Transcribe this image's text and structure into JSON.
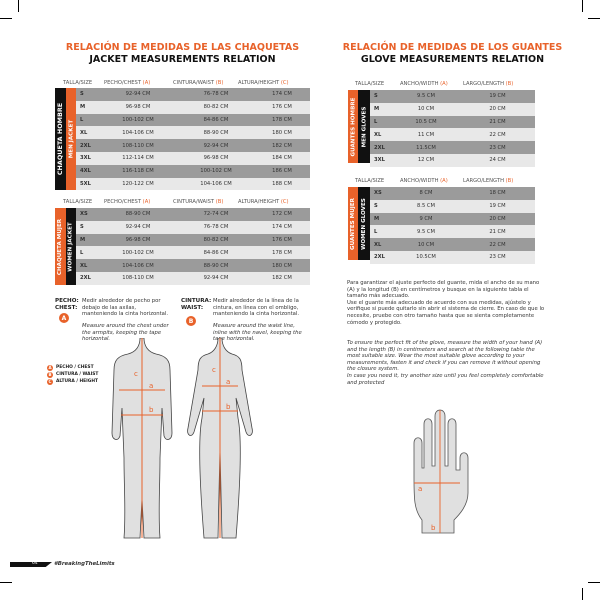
{
  "jacket": {
    "title_es": "RELACIÓN DE MEDIDAS DE LAS CHAQUETAS",
    "title_en": "JACKET MEASUREMENTS RELATION",
    "headers": {
      "size": "TALLA/SIZE",
      "chest": "PECHO/CHEST",
      "chest_tag": "(A)",
      "waist": "CINTURA/WAIST",
      "waist_tag": "(B)",
      "height": "ALTURA/HEIGHT",
      "height_tag": "(C)"
    },
    "men": {
      "label_es": "CHAQUETA HOMBRE",
      "label_en": "MEN JACKET",
      "rows": [
        [
          "S",
          "92-94 CM",
          "76-78 CM",
          "174 CM"
        ],
        [
          "M",
          "96-98 CM",
          "80-82 CM",
          "176 CM"
        ],
        [
          "L",
          "100-102 CM",
          "84-86 CM",
          "178 CM"
        ],
        [
          "XL",
          "104-106 CM",
          "88-90 CM",
          "180 CM"
        ],
        [
          "2XL",
          "108-110 CM",
          "92-94 CM",
          "182 CM"
        ],
        [
          "3XL",
          "112-114 CM",
          "96-98 CM",
          "184 CM"
        ],
        [
          "4XL",
          "116-118 CM",
          "100-102 CM",
          "186 CM"
        ],
        [
          "5XL",
          "120-122 CM",
          "104-106 CM",
          "188 CM"
        ]
      ]
    },
    "women": {
      "label_es": "CHAQUETA MUJER",
      "label_en": "WOMEN JACKET",
      "rows": [
        [
          "XS",
          "88-90 CM",
          "72-74 CM",
          "172 CM"
        ],
        [
          "S",
          "92-94 CM",
          "76-78 CM",
          "174 CM"
        ],
        [
          "M",
          "96-98 CM",
          "80-82 CM",
          "176 CM"
        ],
        [
          "L",
          "100-102 CM",
          "84-86 CM",
          "178 CM"
        ],
        [
          "XL",
          "104-106 CM",
          "88-90 CM",
          "180 CM"
        ],
        [
          "2XL",
          "108-110 CM",
          "92-94 CM",
          "182 CM"
        ]
      ]
    },
    "chest_note": {
      "label": "PECHO:\nCHEST:",
      "badge": "A",
      "es": "Medir alrededor de pecho por debajo de las axilas, manteniendo la cinta horizontal.",
      "en": "Measure around the chest under the armpits, keeping the tape horizontal."
    },
    "waist_note": {
      "label": "CINTURA:\nWAIST:",
      "badge": "B",
      "es": "Medir alrededor de la línea de la cintura, en línea con el ombligo, manteniendo la cinta horizontal.",
      "en": "Measure around the waist line, inline with the navel, keeping the tape horizontal."
    },
    "legend": [
      {
        "badge": "A",
        "label": "PECHO / CHEST"
      },
      {
        "badge": "B",
        "label": "CINTURA / WAIST"
      },
      {
        "badge": "C",
        "label": "ALTURA / HEIGHT"
      }
    ],
    "figure_labels": {
      "a": "a",
      "b": "b",
      "c": "c"
    }
  },
  "gloves": {
    "title_es": "RELACIÓN DE MEDIDAS DE LOS GUANTES",
    "title_en": "GLOVE MEASUREMENTS RELATION",
    "headers": {
      "size": "TALLA/SIZE",
      "width": "ANCHO/WIDTH",
      "width_tag": "(A)",
      "length": "LARGO/LENGTH",
      "length_tag": "(B)"
    },
    "men": {
      "label_es": "GUANTES HOMBRE",
      "label_en": "MEN GLOVES",
      "rows": [
        [
          "S",
          "9.5 CM",
          "19 CM"
        ],
        [
          "M",
          "10 CM",
          "20 CM"
        ],
        [
          "L",
          "10.5 CM",
          "21 CM"
        ],
        [
          "XL",
          "11 CM",
          "22 CM"
        ],
        [
          "2XL",
          "11.5CM",
          "23 CM"
        ],
        [
          "3XL",
          "12 CM",
          "24 CM"
        ]
      ]
    },
    "women": {
      "label_es": "GUANTES MUJER",
      "label_en": "WOMEN GLOVES",
      "rows": [
        [
          "XS",
          "8 CM",
          "18 CM"
        ],
        [
          "S",
          "8.5 CM",
          "19 CM"
        ],
        [
          "M",
          "9 CM",
          "20 CM"
        ],
        [
          "L",
          "9.5 CM",
          "21 CM"
        ],
        [
          "XL",
          "10 CM",
          "22 CM"
        ],
        [
          "2XL",
          "10.5CM",
          "23 CM"
        ]
      ]
    },
    "text_es_1": "Para garantizar el ajuste perfecto del guante, mida el ancho de su mano (A) y la longitud (B) en centímetros y busque en la siguiente tabla el tamaño más adecuado.",
    "text_es_2": "Use el guante más adecuado de acuerdo con sus medidas, ajústelo y verifique si puede quitarlo sin abrir el sistema de cierre. En caso de que lo necesite, pruebe con otro tamaño hasta que se sienta completamente cómodo y protegido.",
    "text_en_1": "To ensure the perfect fit of the glove, measure the width of your hand (A) and the length (B) in centimeters and search at the following table the most suitable size. Wear the most suitable glove according to your measurements, fasten it and check if you can remove it without opening the closure system.",
    "text_en_2": "In case you need it, try another size until you feel completely comfortable and protected",
    "hand_labels": {
      "a": "a",
      "b": "b"
    }
  },
  "footer": {
    "page": "64",
    "tag": "#BreakingTheLimits"
  },
  "colors": {
    "accent": "#e8622a",
    "dark": "#111111",
    "row_dark": "#9b9b9b",
    "row_light": "#e8e8e8"
  }
}
